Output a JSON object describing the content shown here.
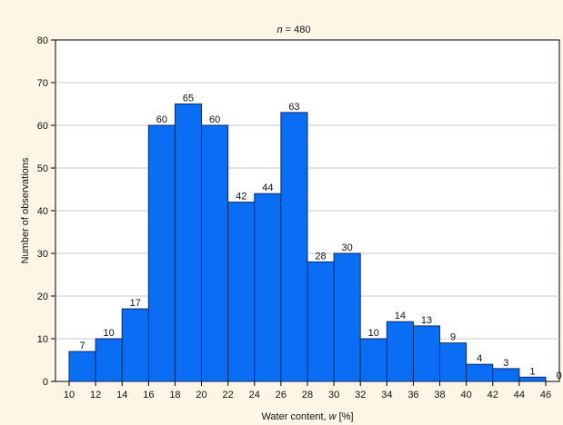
{
  "chart_data": {
    "type": "bar",
    "title_italic": "n",
    "title_rest": " = 480",
    "xlabel_text": "Water content, ",
    "xlabel_italic": "w",
    "xlabel_unit": " [%]",
    "ylabel": "Number of observations",
    "bin_edges": [
      10,
      12,
      14,
      16,
      18,
      20,
      22,
      24,
      26,
      28,
      30,
      32,
      34,
      36,
      38,
      40,
      42,
      44,
      46
    ],
    "values": [
      7,
      10,
      17,
      60,
      65,
      60,
      42,
      44,
      63,
      28,
      30,
      10,
      14,
      13,
      9,
      4,
      3,
      1,
      0
    ],
    "x_ticks": [
      "10",
      "12",
      "14",
      "16",
      "18",
      "20",
      "22",
      "24",
      "26",
      "28",
      "30",
      "32",
      "34",
      "36",
      "38",
      "40",
      "42",
      "44",
      "46"
    ],
    "y_ticks": [
      "0",
      "10",
      "20",
      "30",
      "40",
      "50",
      "60",
      "70",
      "80"
    ],
    "ylim": [
      0,
      80
    ],
    "grid": true,
    "colors": {
      "bar": "#0a6ef5",
      "bar_edge": "#0a2a6a",
      "plot_bg": "#ffffff",
      "page_bg": "#fbf6e6",
      "grid": "#c8c8c8"
    }
  }
}
